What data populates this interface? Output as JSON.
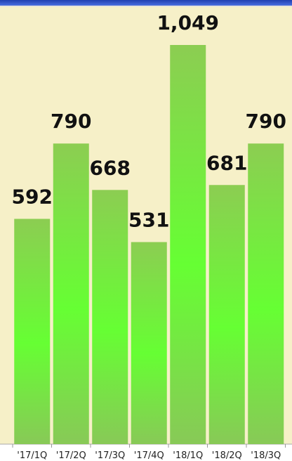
{
  "chart_data": {
    "type": "bar",
    "categories": [
      "'17/1Q",
      "'17/2Q",
      "'17/3Q",
      "'17/4Q",
      "'18/1Q",
      "'18/2Q",
      "'18/3Q"
    ],
    "values": [
      592,
      790,
      668,
      531,
      1049,
      681,
      790
    ],
    "value_labels": [
      "592",
      "790",
      "668",
      "531",
      "1,049",
      "681",
      "790"
    ]
  }
}
